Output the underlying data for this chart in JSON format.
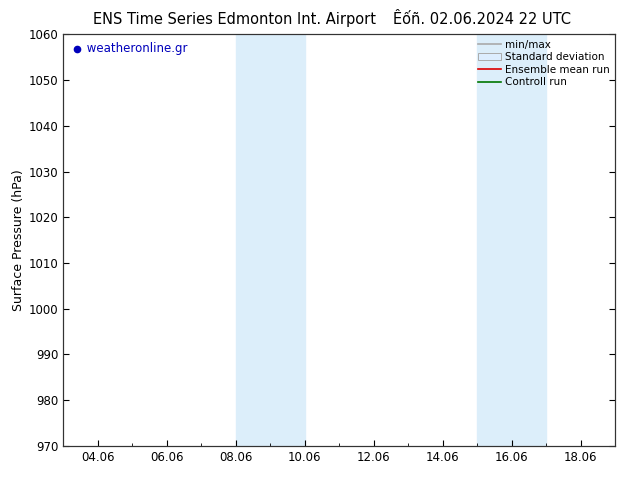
{
  "title_left": "ENS Time Series Edmonton Int. Airport",
  "title_right": "Êốñ. 02.06.2024 22 UTC",
  "ylabel": "Surface Pressure (hPa)",
  "ylim": [
    970,
    1060
  ],
  "yticks": [
    970,
    980,
    990,
    1000,
    1010,
    1020,
    1030,
    1040,
    1050,
    1060
  ],
  "xtick_labels": [
    "04.06",
    "06.06",
    "08.06",
    "10.06",
    "12.06",
    "14.06",
    "16.06",
    "18.06"
  ],
  "xtick_positions": [
    4,
    6,
    8,
    10,
    12,
    14,
    16,
    18
  ],
  "xlim": [
    3,
    19
  ],
  "shaded_regions": [
    {
      "xmin": 8.0,
      "xmax": 10.0,
      "color": "#dceefa"
    },
    {
      "xmin": 15.0,
      "xmax": 17.0,
      "color": "#dceefa"
    }
  ],
  "watermark_text": " weatheronline.gr",
  "watermark_color": "#0000bb",
  "background_color": "#ffffff",
  "plot_bg_color": "#ffffff",
  "legend_labels": [
    "min/max",
    "Standard deviation",
    "Ensemble mean run",
    "Controll run"
  ],
  "legend_line_colors": [
    "#aaaaaa",
    "#cccccc",
    "#dd0000",
    "#007700"
  ],
  "title_fontsize": 10.5,
  "tick_fontsize": 8.5,
  "ylabel_fontsize": 9
}
